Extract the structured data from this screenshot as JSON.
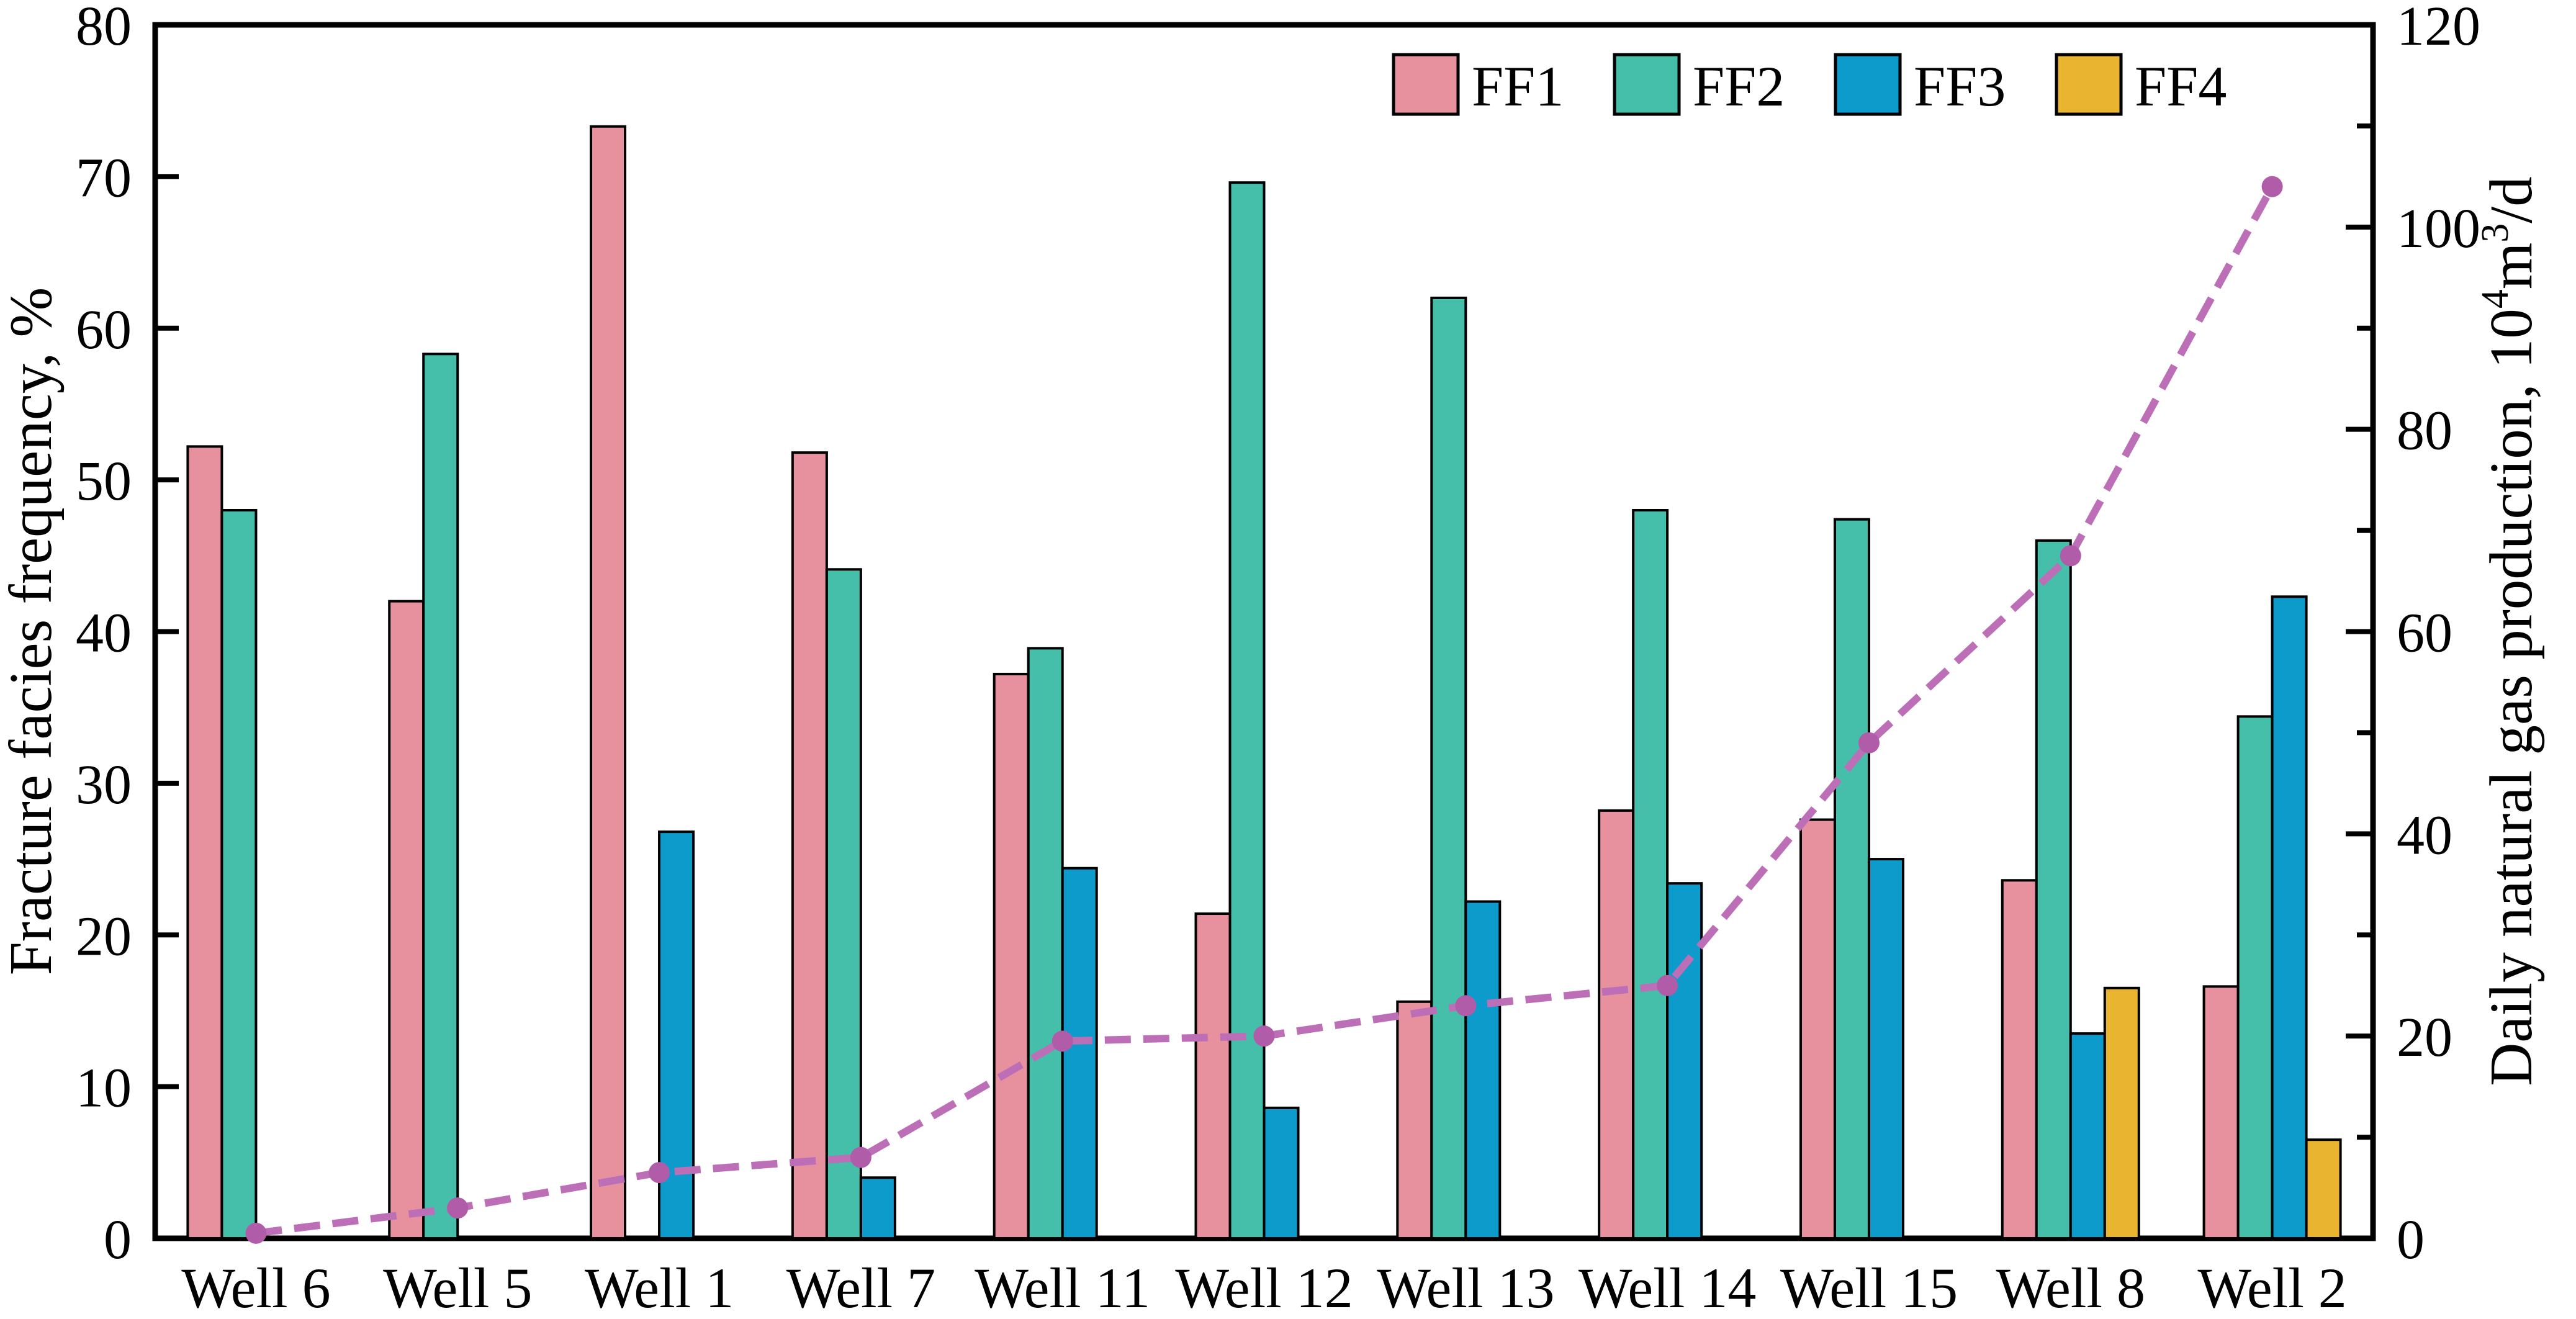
{
  "chart_data": {
    "type": "bar+line",
    "categories": [
      "Well 6",
      "Well 5",
      "Well 1",
      "Well 7",
      "Well 11",
      "Well 12",
      "Well 13",
      "Well 14",
      "Well 15",
      "Well 8",
      "Well 2"
    ],
    "series": [
      {
        "name": "FF1",
        "color": "#E8919E",
        "values": [
          52.2,
          42.0,
          73.3,
          51.8,
          37.2,
          21.4,
          15.6,
          28.2,
          27.6,
          23.6,
          16.6
        ]
      },
      {
        "name": "FF2",
        "color": "#45BFA9",
        "values": [
          48.0,
          58.3,
          null,
          44.1,
          38.9,
          69.6,
          62.0,
          48.0,
          47.4,
          46.0,
          34.4
        ]
      },
      {
        "name": "FF3",
        "color": "#0D9BCB",
        "values": [
          null,
          null,
          26.8,
          4.0,
          24.4,
          8.6,
          22.2,
          23.4,
          25.0,
          13.5,
          42.3
        ]
      },
      {
        "name": "FF4",
        "color": "#E9B42F",
        "values": [
          null,
          null,
          null,
          null,
          null,
          null,
          null,
          null,
          null,
          16.5,
          6.5
        ]
      }
    ],
    "line_series": {
      "name": "Daily natural gas production",
      "color": "#BC6FB6",
      "marker_color": "#B15CA9",
      "values": [
        0.5,
        3.0,
        6.5,
        8.0,
        19.5,
        20.0,
        23.0,
        25.0,
        49.0,
        67.5,
        104.0
      ]
    },
    "left_axis": {
      "label": "Fracture facies frequency, %",
      "min": 0,
      "max": 80,
      "tick_step": 10,
      "tick_labels": [
        "0",
        "10",
        "20",
        "30",
        "40",
        "50",
        "60",
        "70",
        "80"
      ]
    },
    "right_axis": {
      "label_parts": {
        "p1": "Daily natural gas production, 10",
        "sup1": "4",
        "p2": "m",
        "sup2": "3",
        "p3": "/d"
      },
      "min": 0,
      "max": 120,
      "tick_step": 20,
      "minor_tick_step": 10,
      "tick_labels": [
        "0",
        "20",
        "40",
        "60",
        "80",
        "100",
        "120"
      ]
    },
    "legend": [
      "FF1",
      "FF2",
      "FF3",
      "FF4"
    ],
    "grid": "off",
    "legend_position": "top-right-inside",
    "background_color": "#FFFFFF",
    "axis_color": "#000000"
  }
}
